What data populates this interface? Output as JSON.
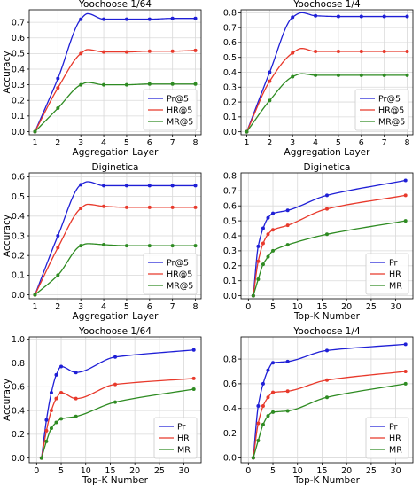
{
  "colors": {
    "Pr": "#1f1fd6",
    "HR": "#e8392b",
    "MR": "#2e8b22"
  },
  "chart_data": [
    {
      "type": "line",
      "title": "Yoochoose 1/64",
      "xlabel": "Aggregation Layer",
      "ylabel": "Accuracy",
      "xlim": [
        0.75,
        8.25
      ],
      "ylim": [
        -0.02,
        0.78
      ],
      "xticks": [
        1,
        2,
        3,
        4,
        5,
        6,
        7,
        8
      ],
      "yticks": [
        0.0,
        0.1,
        0.2,
        0.3,
        0.4,
        0.5,
        0.6,
        0.7
      ],
      "x": [
        1,
        2,
        3,
        4,
        5,
        6,
        7,
        8
      ],
      "legend": "lower-right",
      "series": [
        {
          "name": "Pr@5",
          "key": "Pr",
          "values": [
            0.0,
            0.34,
            0.72,
            0.72,
            0.72,
            0.72,
            0.725,
            0.725
          ],
          "peak": [
            3.3,
            0.755
          ]
        },
        {
          "name": "HR@5",
          "key": "HR",
          "values": [
            0.0,
            0.28,
            0.5,
            0.51,
            0.51,
            0.515,
            0.515,
            0.52
          ],
          "peak": [
            3.3,
            0.525
          ]
        },
        {
          "name": "MR@5",
          "key": "MR",
          "values": [
            0.0,
            0.15,
            0.3,
            0.3,
            0.3,
            0.305,
            0.305,
            0.305
          ],
          "peak": [
            3.3,
            0.315
          ]
        }
      ]
    },
    {
      "type": "line",
      "title": "Yoochoose 1/4",
      "xlabel": "Aggregation Layer",
      "ylabel": "",
      "xlim": [
        0.75,
        8.25
      ],
      "ylim": [
        -0.02,
        0.82
      ],
      "xticks": [
        1,
        2,
        3,
        4,
        5,
        6,
        7,
        8
      ],
      "yticks": [
        0.0,
        0.1,
        0.2,
        0.3,
        0.4,
        0.5,
        0.6,
        0.7,
        0.8
      ],
      "x": [
        1,
        2,
        3,
        4,
        5,
        6,
        7,
        8
      ],
      "legend": "lower-right",
      "series": [
        {
          "name": "Pr@5",
          "key": "Pr",
          "values": [
            0.0,
            0.4,
            0.77,
            0.78,
            0.775,
            0.775,
            0.775,
            0.775
          ],
          "peak": [
            3.4,
            0.8
          ]
        },
        {
          "name": "HR@5",
          "key": "HR",
          "values": [
            0.0,
            0.34,
            0.53,
            0.54,
            0.54,
            0.54,
            0.54,
            0.54
          ],
          "peak": [
            3.4,
            0.56
          ]
        },
        {
          "name": "MR@5",
          "key": "MR",
          "values": [
            0.0,
            0.21,
            0.37,
            0.38,
            0.38,
            0.38,
            0.38,
            0.38
          ],
          "peak": [
            3.4,
            0.39
          ]
        }
      ]
    },
    {
      "type": "line",
      "title": "Diginetica",
      "xlabel": "Aggregation Layer",
      "ylabel": "Accuracy",
      "xlim": [
        0.75,
        8.25
      ],
      "ylim": [
        -0.02,
        0.62
      ],
      "xticks": [
        1,
        2,
        3,
        4,
        5,
        6,
        7,
        8
      ],
      "yticks": [
        0.0,
        0.1,
        0.2,
        0.3,
        0.4,
        0.5,
        0.6
      ],
      "x": [
        1,
        2,
        3,
        4,
        5,
        6,
        7,
        8
      ],
      "legend": "lower-right",
      "series": [
        {
          "name": "Pr@5",
          "key": "Pr",
          "values": [
            0.0,
            0.3,
            0.56,
            0.555,
            0.555,
            0.555,
            0.555,
            0.555
          ],
          "peak": [
            3.3,
            0.575
          ]
        },
        {
          "name": "HR@5",
          "key": "HR",
          "values": [
            0.0,
            0.24,
            0.44,
            0.45,
            0.445,
            0.445,
            0.445,
            0.445
          ],
          "peak": [
            3.3,
            0.46
          ]
        },
        {
          "name": "MR@5",
          "key": "MR",
          "values": [
            0.0,
            0.1,
            0.25,
            0.255,
            0.25,
            0.25,
            0.25,
            0.25
          ],
          "peak": [
            3.3,
            0.26
          ]
        }
      ]
    },
    {
      "type": "line",
      "title": "Diginetica",
      "xlabel": "Top-K Number",
      "ylabel": "",
      "xlim": [
        -1.5,
        33.5
      ],
      "ylim": [
        -0.02,
        0.82
      ],
      "xticks": [
        0,
        5,
        10,
        15,
        20,
        25,
        30
      ],
      "yticks": [
        0.0,
        0.1,
        0.2,
        0.3,
        0.4,
        0.5,
        0.6,
        0.7,
        0.8
      ],
      "x": [
        1,
        2,
        3,
        4,
        5,
        8,
        16,
        32
      ],
      "legend": "lower-right",
      "series": [
        {
          "name": "Pr",
          "key": "Pr",
          "values": [
            0.0,
            0.33,
            0.45,
            0.52,
            0.55,
            0.57,
            0.67,
            0.77
          ]
        },
        {
          "name": "HR",
          "key": "HR",
          "values": [
            0.0,
            0.23,
            0.35,
            0.41,
            0.44,
            0.47,
            0.58,
            0.67
          ]
        },
        {
          "name": "MR",
          "key": "MR",
          "values": [
            0.0,
            0.11,
            0.21,
            0.26,
            0.3,
            0.34,
            0.41,
            0.5
          ]
        }
      ]
    },
    {
      "type": "line",
      "title": "Yoochoose 1/64",
      "xlabel": "Top-K Number",
      "ylabel": "Accuracy",
      "xlim": [
        -1.5,
        33.5
      ],
      "ylim": [
        -0.04,
        1.02
      ],
      "xticks": [
        0,
        5,
        10,
        15,
        20,
        25,
        30
      ],
      "yticks": [
        0.0,
        0.2,
        0.4,
        0.6,
        0.8,
        1.0
      ],
      "x": [
        1,
        2,
        3,
        4,
        5,
        8,
        16,
        32
      ],
      "legend": "lower-right",
      "series": [
        {
          "name": "Pr",
          "key": "Pr",
          "values": [
            0.0,
            0.32,
            0.55,
            0.7,
            0.77,
            0.72,
            0.85,
            0.91
          ]
        },
        {
          "name": "HR",
          "key": "HR",
          "values": [
            0.0,
            0.23,
            0.4,
            0.5,
            0.55,
            0.5,
            0.62,
            0.67
          ]
        },
        {
          "name": "MR",
          "key": "MR",
          "values": [
            0.0,
            0.14,
            0.25,
            0.3,
            0.33,
            0.35,
            0.47,
            0.58
          ]
        }
      ]
    },
    {
      "type": "line",
      "title": "Yoochoose 1/4",
      "xlabel": "Top-K Number",
      "ylabel": "",
      "xlim": [
        -1.5,
        33.5
      ],
      "ylim": [
        -0.04,
        0.98
      ],
      "xticks": [
        0,
        5,
        10,
        15,
        20,
        25,
        30
      ],
      "yticks": [
        0.0,
        0.2,
        0.4,
        0.6,
        0.8
      ],
      "x": [
        1,
        2,
        3,
        4,
        5,
        8,
        16,
        32
      ],
      "legend": "lower-right",
      "series": [
        {
          "name": "Pr",
          "key": "Pr",
          "values": [
            0.0,
            0.42,
            0.6,
            0.71,
            0.77,
            0.78,
            0.87,
            0.92
          ]
        },
        {
          "name": "HR",
          "key": "HR",
          "values": [
            0.0,
            0.28,
            0.42,
            0.49,
            0.53,
            0.54,
            0.63,
            0.7
          ]
        },
        {
          "name": "MR",
          "key": "MR",
          "values": [
            0.0,
            0.14,
            0.27,
            0.34,
            0.37,
            0.38,
            0.49,
            0.6
          ]
        }
      ]
    }
  ]
}
